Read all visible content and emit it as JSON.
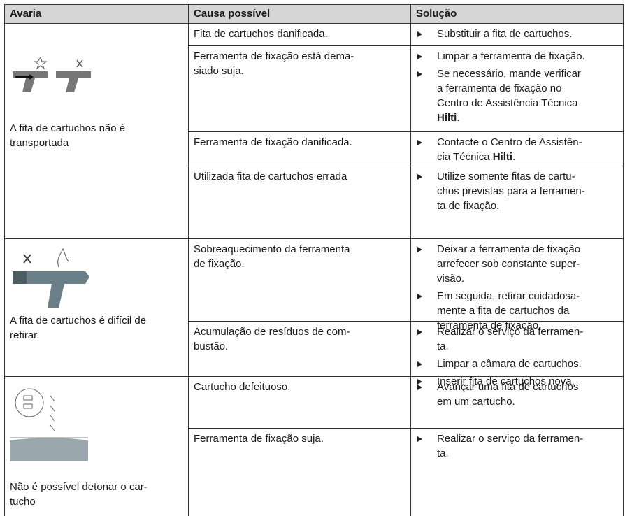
{
  "table": {
    "headers": [
      "Avaria",
      "Causa possível",
      "Solução"
    ],
    "rows": [
      {
        "fault": [
          "A fita de cartuchos não é",
          "transportada"
        ],
        "causes": [
          {
            "cause": [
              "Fita de cartuchos danificada."
            ],
            "solutions": [
              [
                "Substituir a fita de cartuchos."
              ]
            ]
          },
          {
            "cause": [
              "Ferramenta de fixação está dema-",
              "siado suja."
            ],
            "solutions": [
              [
                "Limpar a ferramenta de fixação."
              ],
              [
                "Se necessário, mande verificar",
                "a ferramenta de fixação no",
                "Centro de Assistência Técnica",
                {
                  "strong": "Hilti",
                  "after": "."
                }
              ]
            ]
          },
          {
            "cause": [
              "Ferramenta de fixação danificada."
            ],
            "solutions": [
              [
                "Contacte o Centro de Assistên-",
                {
                  "before": "cia Técnica ",
                  "strong": "Hilti",
                  "after": "."
                }
              ]
            ]
          },
          {
            "cause": [
              "Utilizada fita de cartuchos errada"
            ],
            "solutions": [
              [
                "Utilize somente fitas de cartu-",
                "chos previstas para a ferramen-",
                "ta de fixação."
              ]
            ]
          }
        ]
      },
      {
        "fault": [
          "A fita de cartuchos é difícil de",
          "retirar."
        ],
        "causes": [
          {
            "cause": [
              "Sobreaquecimento da ferramenta",
              "de fixação."
            ],
            "solutions": [
              [
                "Deixar a ferramenta de fixação",
                "arrefecer sob constante super-",
                "visão."
              ],
              [
                "Em seguida, retirar cuidadosa-",
                "mente a fita de cartuchos da",
                "ferramenta de fixação."
              ]
            ]
          },
          {
            "cause": [
              "Acumulação de resíduos de com-",
              "bustão."
            ],
            "solutions": [
              [
                "Realizar o serviço da ferramen-",
                "ta."
              ],
              [
                "Limpar a câmara de cartuchos."
              ],
              [
                "Inserir fita de cartuchos nova."
              ]
            ]
          }
        ]
      },
      {
        "fault": [
          "Não é possível detonar o car-",
          "tucho"
        ],
        "causes": [
          {
            "cause": [
              "Cartucho defeituoso."
            ],
            "solutions": [
              [
                "Avançar uma fita de cartuchos",
                "em um cartucho."
              ]
            ]
          },
          {
            "cause": [
              "Ferramenta de fixação suja."
            ],
            "solutions": [
              [
                "Realizar o serviço da ferramen-",
                "ta."
              ]
            ]
          }
        ]
      }
    ]
  }
}
